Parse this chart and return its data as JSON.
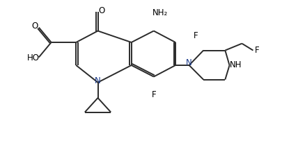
{
  "bg_color": "#ffffff",
  "line_color": "#2a2a2a",
  "n_color": "#1a3a8a",
  "label_color": "#000000",
  "line_width": 1.4,
  "font_size": 8.5,
  "figsize": [
    4.05,
    2.06
  ],
  "dpi": 100,
  "xlim": [
    0.0,
    8.5
  ],
  "ylim": [
    -0.6,
    4.2
  ]
}
